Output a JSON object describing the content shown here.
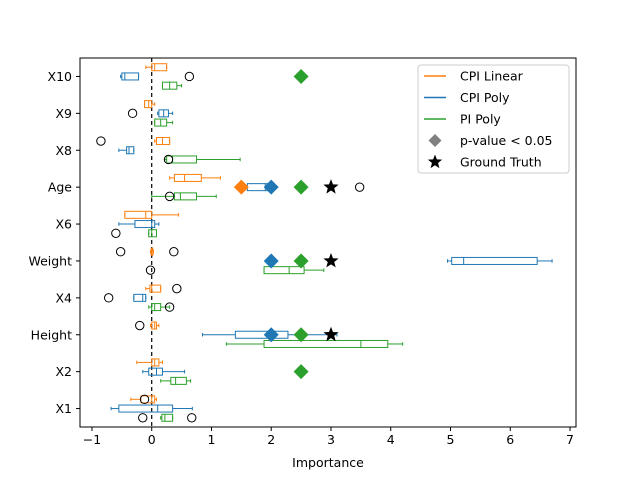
{
  "chart_data": {
    "type": "boxplot",
    "xlabel": "Importance",
    "ylabel": "",
    "xlim": [
      -1.2,
      7.1
    ],
    "xticks": [
      -1,
      0,
      1,
      2,
      3,
      4,
      5,
      6,
      7
    ],
    "grid": false,
    "legend_position": "top-right",
    "zero_line": 0,
    "categories": [
      "X1",
      "X2",
      "Height",
      "X4",
      "Weight",
      "X6",
      "Age",
      "X8",
      "X9",
      "X10"
    ],
    "colors": {
      "cpi_linear": "#ff7f0e",
      "cpi_poly": "#1f77b4",
      "pi_poly": "#2ca02c",
      "pvalue": "#808080",
      "truth": "#000000"
    },
    "legend": [
      {
        "label": "CPI Linear",
        "kind": "line",
        "color": "#ff7f0e"
      },
      {
        "label": "CPI Poly",
        "kind": "line",
        "color": "#1f77b4"
      },
      {
        "label": "PI Poly",
        "kind": "line",
        "color": "#2ca02c"
      },
      {
        "label": "p-value < 0.05",
        "kind": "diamond",
        "color": "#808080"
      },
      {
        "label": "Ground Truth",
        "kind": "star",
        "color": "#000000"
      }
    ],
    "series": [
      {
        "name": "CPI Linear",
        "color": "#ff7f0e",
        "offset": -0.25,
        "boxes": [
          {
            "category": "X1",
            "whislo": -0.35,
            "q1": -0.18,
            "med": 0.0,
            "q3": 0.05,
            "whishi": 0.08,
            "fliers": [
              -0.12
            ]
          },
          {
            "category": "X2",
            "whislo": -0.25,
            "q1": 0.0,
            "med": 0.05,
            "q3": 0.12,
            "whishi": 0.18,
            "fliers": []
          },
          {
            "category": "Height",
            "whislo": -0.02,
            "q1": 0.0,
            "med": 0.05,
            "q3": 0.08,
            "whishi": 0.12,
            "fliers": [
              -0.2
            ]
          },
          {
            "category": "X4",
            "whislo": -0.1,
            "q1": -0.03,
            "med": 0.0,
            "q3": 0.15,
            "whishi": 0.15,
            "fliers": [
              0.42
            ]
          },
          {
            "category": "Weight",
            "whislo": -0.02,
            "q1": -0.01,
            "med": 0.0,
            "q3": 0.02,
            "whishi": 0.03,
            "fliers": [
              -0.52,
              0.37
            ]
          },
          {
            "category": "X6",
            "whislo": -0.45,
            "q1": -0.45,
            "med": -0.1,
            "q3": 0.0,
            "whishi": 0.45,
            "fliers": []
          },
          {
            "category": "Age",
            "whislo": 0.3,
            "q1": 0.38,
            "med": 0.55,
            "q3": 0.83,
            "whishi": 1.15,
            "fliers": []
          },
          {
            "category": "X8",
            "whislo": 0.05,
            "q1": 0.08,
            "med": 0.18,
            "q3": 0.3,
            "whishi": 0.3,
            "fliers": [
              -0.85
            ]
          },
          {
            "category": "X9",
            "whislo": -0.12,
            "q1": -0.12,
            "med": -0.05,
            "q3": 0.0,
            "whishi": 0.05,
            "fliers": []
          },
          {
            "category": "X10",
            "whislo": -0.1,
            "q1": 0.0,
            "med": 0.05,
            "q3": 0.25,
            "whishi": 0.25,
            "fliers": []
          }
        ]
      },
      {
        "name": "CPI Poly",
        "color": "#1f77b4",
        "offset": 0.0,
        "boxes": [
          {
            "category": "X1",
            "whislo": -0.68,
            "q1": -0.55,
            "med": 0.1,
            "q3": 0.35,
            "whishi": 0.68,
            "fliers": []
          },
          {
            "category": "X2",
            "whislo": -0.15,
            "q1": -0.05,
            "med": 0.08,
            "q3": 0.18,
            "whishi": 0.55,
            "fliers": []
          },
          {
            "category": "Height",
            "whislo": 0.85,
            "q1": 1.4,
            "med": 2.0,
            "q3": 2.28,
            "whishi": 3.1,
            "fliers": []
          },
          {
            "category": "X4",
            "whislo": -0.3,
            "q1": -0.3,
            "med": -0.15,
            "q3": -0.1,
            "whishi": -0.1,
            "fliers": [
              -0.72
            ]
          },
          {
            "category": "Weight",
            "whislo": 4.95,
            "q1": 5.02,
            "med": 5.22,
            "q3": 6.45,
            "whishi": 6.7,
            "fliers": []
          },
          {
            "category": "X6",
            "whislo": -0.55,
            "q1": -0.28,
            "med": 0.0,
            "q3": 0.05,
            "whishi": 0.12,
            "fliers": []
          },
          {
            "category": "Age",
            "whislo": 1.55,
            "q1": 1.6,
            "med": 1.9,
            "q3": 2.0,
            "whishi": 2.02,
            "fliers": [
              3.48
            ]
          },
          {
            "category": "X8",
            "whislo": -0.55,
            "q1": -0.42,
            "med": -0.38,
            "q3": -0.3,
            "whishi": -0.3,
            "fliers": []
          },
          {
            "category": "X9",
            "whislo": 0.1,
            "q1": 0.12,
            "med": 0.2,
            "q3": 0.28,
            "whishi": 0.35,
            "fliers": [
              -0.32
            ]
          },
          {
            "category": "X10",
            "whislo": -0.52,
            "q1": -0.5,
            "med": -0.45,
            "q3": -0.22,
            "whishi": -0.22,
            "fliers": [
              0.63
            ]
          }
        ]
      },
      {
        "name": "PI Poly",
        "color": "#2ca02c",
        "offset": 0.25,
        "boxes": [
          {
            "category": "X1",
            "whislo": 0.15,
            "q1": 0.17,
            "med": 0.22,
            "q3": 0.35,
            "whishi": 0.35,
            "fliers": [
              -0.15,
              0.67
            ]
          },
          {
            "category": "X2",
            "whislo": 0.15,
            "q1": 0.32,
            "med": 0.4,
            "q3": 0.58,
            "whishi": 0.65,
            "fliers": []
          },
          {
            "category": "Height",
            "whislo": 1.25,
            "q1": 1.88,
            "med": 3.5,
            "q3": 3.95,
            "whishi": 4.2,
            "fliers": []
          },
          {
            "category": "X4",
            "whislo": -0.05,
            "q1": 0.0,
            "med": 0.05,
            "q3": 0.15,
            "whishi": 0.3,
            "fliers": [
              0.3
            ]
          },
          {
            "category": "Weight",
            "whislo": 1.88,
            "q1": 1.88,
            "med": 2.3,
            "q3": 2.55,
            "whishi": 2.88,
            "fliers": [
              -0.02
            ]
          },
          {
            "category": "X6",
            "whislo": -0.05,
            "q1": -0.05,
            "med": 0.0,
            "q3": 0.08,
            "whishi": 0.08,
            "fliers": [
              -0.6
            ]
          },
          {
            "category": "Age",
            "whislo": 0.0,
            "q1": 0.38,
            "med": 0.48,
            "q3": 0.75,
            "whishi": 1.08,
            "fliers": [
              0.3
            ]
          },
          {
            "category": "X8",
            "whislo": 0.22,
            "q1": 0.25,
            "med": 0.35,
            "q3": 0.75,
            "whishi": 1.48,
            "fliers": [
              0.28
            ]
          },
          {
            "category": "X9",
            "whislo": 0.05,
            "q1": 0.05,
            "med": 0.15,
            "q3": 0.25,
            "whishi": 0.35,
            "fliers": []
          },
          {
            "category": "X10",
            "whislo": 0.18,
            "q1": 0.18,
            "med": 0.3,
            "q3": 0.42,
            "whishi": 0.5,
            "fliers": []
          }
        ]
      }
    ],
    "markers": [
      {
        "kind": "diamond",
        "series": "CPI Linear",
        "color": "#ff7f0e",
        "category": "Age",
        "x": 1.5
      },
      {
        "kind": "diamond",
        "series": "CPI Poly",
        "color": "#1f77b4",
        "category": "Age",
        "x": 2.0
      },
      {
        "kind": "diamond",
        "series": "PI Poly",
        "color": "#2ca02c",
        "category": "Age",
        "x": 2.5
      },
      {
        "kind": "diamond",
        "series": "CPI Poly",
        "color": "#1f77b4",
        "category": "Weight",
        "x": 2.0
      },
      {
        "kind": "diamond",
        "series": "PI Poly",
        "color": "#2ca02c",
        "category": "Weight",
        "x": 2.5
      },
      {
        "kind": "diamond",
        "series": "CPI Poly",
        "color": "#1f77b4",
        "category": "Height",
        "x": 2.0
      },
      {
        "kind": "diamond",
        "series": "PI Poly",
        "color": "#2ca02c",
        "category": "Height",
        "x": 2.5
      },
      {
        "kind": "diamond",
        "series": "PI Poly",
        "color": "#2ca02c",
        "category": "X2",
        "x": 2.5
      },
      {
        "kind": "diamond",
        "series": "PI Poly",
        "color": "#2ca02c",
        "category": "X10",
        "x": 2.5
      },
      {
        "kind": "star",
        "series": "Ground Truth",
        "color": "#000000",
        "category": "Age",
        "x": 3.0
      },
      {
        "kind": "star",
        "series": "Ground Truth",
        "color": "#000000",
        "category": "Weight",
        "x": 3.0
      },
      {
        "kind": "star",
        "series": "Ground Truth",
        "color": "#000000",
        "category": "Height",
        "x": 3.0
      }
    ]
  }
}
